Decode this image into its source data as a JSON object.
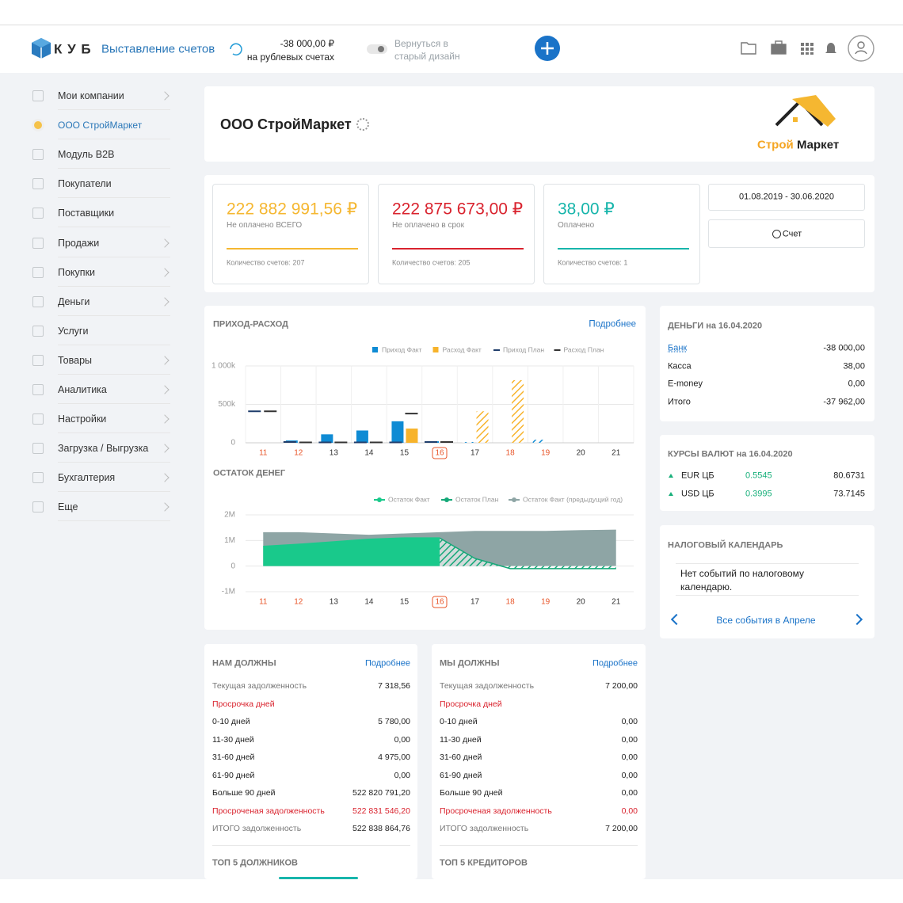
{
  "header": {
    "logo": "К У Б",
    "app": "Выставление счетов",
    "balance": "-38 000,00 ₽",
    "balance_note": "на рублевых счетах",
    "toggle": [
      "Вернуться в",
      "старый дизайн"
    ]
  },
  "sidebar": [
    {
      "label": "Мои компании",
      "submenu": true
    },
    {
      "label": "ООО СтройМаркет",
      "submenu": false,
      "active": true
    },
    {
      "label": "Модуль B2B",
      "submenu": false
    },
    {
      "label": "Покупатели",
      "submenu": false
    },
    {
      "label": "Поставщики",
      "submenu": false
    },
    {
      "label": "Продажи",
      "submenu": true
    },
    {
      "label": "Покупки",
      "submenu": true
    },
    {
      "label": "Деньги",
      "submenu": true
    },
    {
      "label": "Услуги",
      "submenu": false
    },
    {
      "label": "Товары",
      "submenu": true
    },
    {
      "label": "Аналитика",
      "submenu": true
    },
    {
      "label": "Настройки",
      "submenu": true
    },
    {
      "label": "Загрузка / Выгрузка",
      "submenu": true
    },
    {
      "label": "Бухгалтерия",
      "submenu": true
    },
    {
      "label": "Еще",
      "submenu": true
    }
  ],
  "company": {
    "name": "ООО СтройМаркет",
    "logo": [
      "Строй",
      "Маркет"
    ]
  },
  "stats": [
    {
      "amount": "222 882 991,56 ₽",
      "label": "Не оплачено ВСЕГО",
      "count": "Количество счетов: 207",
      "color": "#f5b731"
    },
    {
      "amount": "222 875 673,00 ₽",
      "label": "Не оплачено в срок",
      "count": "Количество счетов: 205",
      "color": "#d9232e"
    },
    {
      "amount": "38,00 ₽",
      "label": "Оплачено",
      "count": "Количество счетов: 1",
      "color": "#17b5ab"
    }
  ],
  "period": "01.08.2019 - 30.06.2020",
  "new_invoice": "Счет",
  "cashflow": {
    "type": "bar",
    "title": "ПРИХОД-РАСХОД",
    "link": "Подробнее",
    "categories": [
      "11",
      "12",
      "13",
      "14",
      "15",
      "16",
      "17",
      "18",
      "19",
      "20",
      "21"
    ],
    "category_colors": [
      "#e8562a",
      "#e8562a",
      "#333333",
      "#333333",
      "#333333",
      "#e8562a",
      "#333333",
      "#e8562a",
      "#e8562a",
      "#333333",
      "#333333"
    ],
    "today": "16",
    "ylim": [
      0,
      1000000
    ],
    "yticks": [
      {
        "value": 1000000,
        "label": "1 000k"
      },
      {
        "value": 500000,
        "label": "500k"
      },
      0
    ],
    "series": [
      {
        "name": "Приход Факт",
        "style": "bar",
        "color": "#0f8bd4",
        "values": [
          null,
          30000,
          110000,
          160000,
          280000,
          20000,
          10000,
          null,
          40000,
          null,
          null
        ]
      },
      {
        "name": "Расход Факт",
        "style": "bar",
        "color": "#f7b32b",
        "values": [
          null,
          null,
          null,
          null,
          185000,
          null,
          410000,
          815000,
          null,
          null,
          null
        ]
      },
      {
        "name": "Приход План",
        "style": "dash",
        "color": "#1f3d6b",
        "values": [
          410000,
          10000,
          5000,
          5000,
          5000,
          10000,
          null,
          null,
          null,
          null,
          null
        ]
      },
      {
        "name": "Расход План",
        "style": "dash",
        "color": "#333333",
        "values": [
          410000,
          5000,
          5000,
          5000,
          380000,
          10000,
          null,
          null,
          null,
          null,
          null
        ]
      }
    ]
  },
  "balance_chart": {
    "type": "area",
    "title": "ОСТАТОК ДЕНЕГ",
    "categories": [
      "11",
      "12",
      "13",
      "14",
      "15",
      "16",
      "17",
      "18",
      "19",
      "20",
      "21"
    ],
    "category_colors": [
      "#e8562a",
      "#e8562a",
      "#333333",
      "#333333",
      "#333333",
      "#e8562a",
      "#333333",
      "#e8562a",
      "#e8562a",
      "#333333",
      "#333333"
    ],
    "today": "16",
    "ylim": [
      -1000000,
      2000000
    ],
    "yticks": [
      {
        "value": 2000000,
        "label": "2M"
      },
      {
        "value": 1000000,
        "label": "1M"
      },
      0,
      {
        "value": -1000000,
        "label": "-1M"
      }
    ],
    "series": [
      {
        "name": "Остаток Факт",
        "style": "solid",
        "color": "#19c98b",
        "values": [
          770000,
          850000,
          950000,
          1050000,
          1100000,
          1100000,
          null,
          null,
          null,
          null,
          null
        ]
      },
      {
        "name": "Остаток План",
        "style": "hatch",
        "color": "#14a878",
        "values": [
          null,
          null,
          null,
          null,
          null,
          1100000,
          300000,
          -100000,
          -100000,
          -100000,
          -100000
        ]
      },
      {
        "name": "Остаток Факт (предыдущий год)",
        "style": "solid",
        "color": "#8ea5a5",
        "values": [
          1300000,
          1300000,
          1250000,
          1200000,
          1250000,
          1300000,
          1350000,
          1350000,
          1350000,
          1380000,
          1400000
        ]
      }
    ]
  },
  "money": {
    "title": "ДЕНЬГИ на 16.04.2020",
    "rows": [
      {
        "label": "Банк",
        "value": "-38 000,00",
        "link": true
      },
      {
        "label": "Касса",
        "value": "38,00"
      },
      {
        "label": "E-money",
        "value": "0,00"
      },
      {
        "label": "Итого",
        "value": "-37 962,00"
      }
    ]
  },
  "rates": {
    "title": "КУРСЫ ВАЛЮТ на 16.04.2020",
    "rows": [
      {
        "code": "EUR ЦБ",
        "change": "0.5545",
        "rate": "80.6731"
      },
      {
        "code": "USD ЦБ",
        "change": "0.3995",
        "rate": "73.7145"
      }
    ]
  },
  "tax": {
    "title": "НАЛОГОВЫЙ КАЛЕНДАРЬ",
    "empty": "Нет событий по налоговому календарю.",
    "link": "Все события в Апреле"
  },
  "debts": [
    {
      "title": "НАМ ДОЛЖНЫ",
      "link": "Подробнее",
      "footer": "ТОП 5 ДОЛЖНИКОВ",
      "rows": [
        {
          "label": "Текущая задолженность",
          "value": "7 318,56",
          "muted": true
        },
        {
          "label": "Просрочка дней",
          "red": true
        },
        {
          "label": "0-10 дней",
          "value": "5 780,00"
        },
        {
          "label": "11-30 дней",
          "value": "0,00"
        },
        {
          "label": "31-60 дней",
          "value": "4 975,00"
        },
        {
          "label": "61-90 дней",
          "value": "0,00"
        },
        {
          "label": "Больше 90 дней",
          "value": "522 820 791,20"
        },
        {
          "label": "Просроченая задолженность",
          "value": "522 831 546,20",
          "red": true
        },
        {
          "label": "ИТОГО задолженность",
          "value": "522 838 864,76",
          "muted": true
        }
      ]
    },
    {
      "title": "МЫ ДОЛЖНЫ",
      "link": "Подробнее",
      "footer": "ТОП 5 КРЕДИТОРОВ",
      "rows": [
        {
          "label": "Текущая задолженность",
          "value": "7 200,00",
          "muted": true
        },
        {
          "label": "Просрочка дней",
          "red": true
        },
        {
          "label": "0-10 дней",
          "value": "0,00"
        },
        {
          "label": "11-30 дней",
          "value": "0,00"
        },
        {
          "label": "31-60 дней",
          "value": "0,00"
        },
        {
          "label": "61-90 дней",
          "value": "0,00"
        },
        {
          "label": "Больше 90 дней",
          "value": "0,00"
        },
        {
          "label": "Просроченая задолженность",
          "value": "0,00",
          "red": true
        },
        {
          "label": "ИТОГО задолженность",
          "value": "7 200,00",
          "muted": true
        }
      ]
    }
  ]
}
